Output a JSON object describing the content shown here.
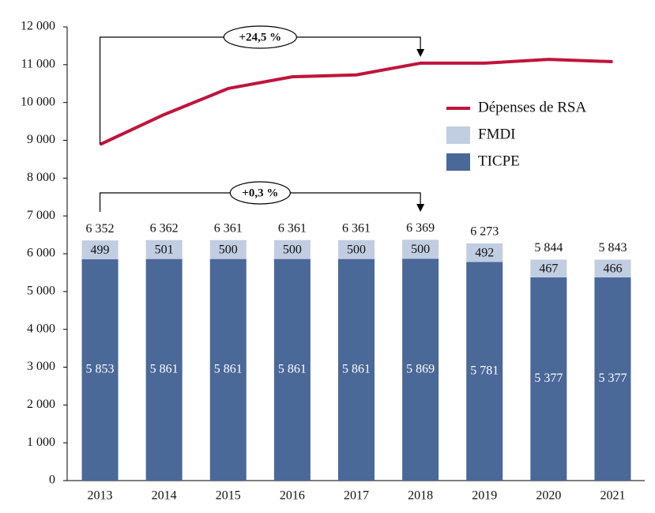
{
  "chart_data": {
    "type": "bar",
    "stacked": true,
    "categories": [
      "2013",
      "2014",
      "2015",
      "2016",
      "2017",
      "2018",
      "2019",
      "2020",
      "2021"
    ],
    "series": [
      {
        "name": "TICPE",
        "type": "bar",
        "color": "#4a6898",
        "values": [
          5853,
          5861,
          5861,
          5861,
          5861,
          5869,
          5781,
          5377,
          5377
        ],
        "value_labels": [
          "5 853",
          "5 861",
          "5 861",
          "5 861",
          "5 861",
          "5 869",
          "5 781",
          "5 377",
          "5 377"
        ]
      },
      {
        "name": "FMDI",
        "type": "bar",
        "color": "#c1cde1",
        "values": [
          499,
          501,
          500,
          500,
          500,
          500,
          492,
          467,
          466
        ],
        "value_labels": [
          "499",
          "501",
          "500",
          "500",
          "500",
          "500",
          "492",
          "467",
          "466"
        ]
      },
      {
        "name": "Dépenses de RSA",
        "type": "line",
        "color": "#c0143c",
        "values": [
          8890,
          9680,
          10370,
          10680,
          10730,
          11040,
          11040,
          11140,
          11080
        ]
      }
    ],
    "totals": [
      6352,
      6362,
      6361,
      6361,
      6361,
      6369,
      6273,
      5844,
      5843
    ],
    "total_labels": [
      "6 352",
      "6 362",
      "6 361",
      "6 361",
      "6 361",
      "6 369",
      "6 273",
      "5 844",
      "5 843"
    ],
    "annotations": [
      "+24,5 %",
      "+0,3 %"
    ],
    "ylim": [
      0,
      12000
    ],
    "yticks": [
      0,
      {
        "value": 1000,
        "label": "1 000"
      },
      {
        "value": 2000,
        "label": "2 000"
      },
      {
        "value": 3000,
        "label": "3 000"
      },
      {
        "value": 4000,
        "label": "4 000"
      },
      {
        "value": 5000,
        "label": "5 000"
      },
      {
        "value": 6000,
        "label": "6 000"
      },
      {
        "value": 7000,
        "label": "7 000"
      },
      {
        "value": 8000,
        "label": "8 000"
      },
      {
        "value": 9000,
        "label": "9 000"
      },
      {
        "value": 10000,
        "label": "10 000"
      },
      {
        "value": 11000,
        "label": "11 000"
      },
      {
        "value": 12000,
        "label": "12 000"
      }
    ],
    "grid": false,
    "legend": "right"
  }
}
